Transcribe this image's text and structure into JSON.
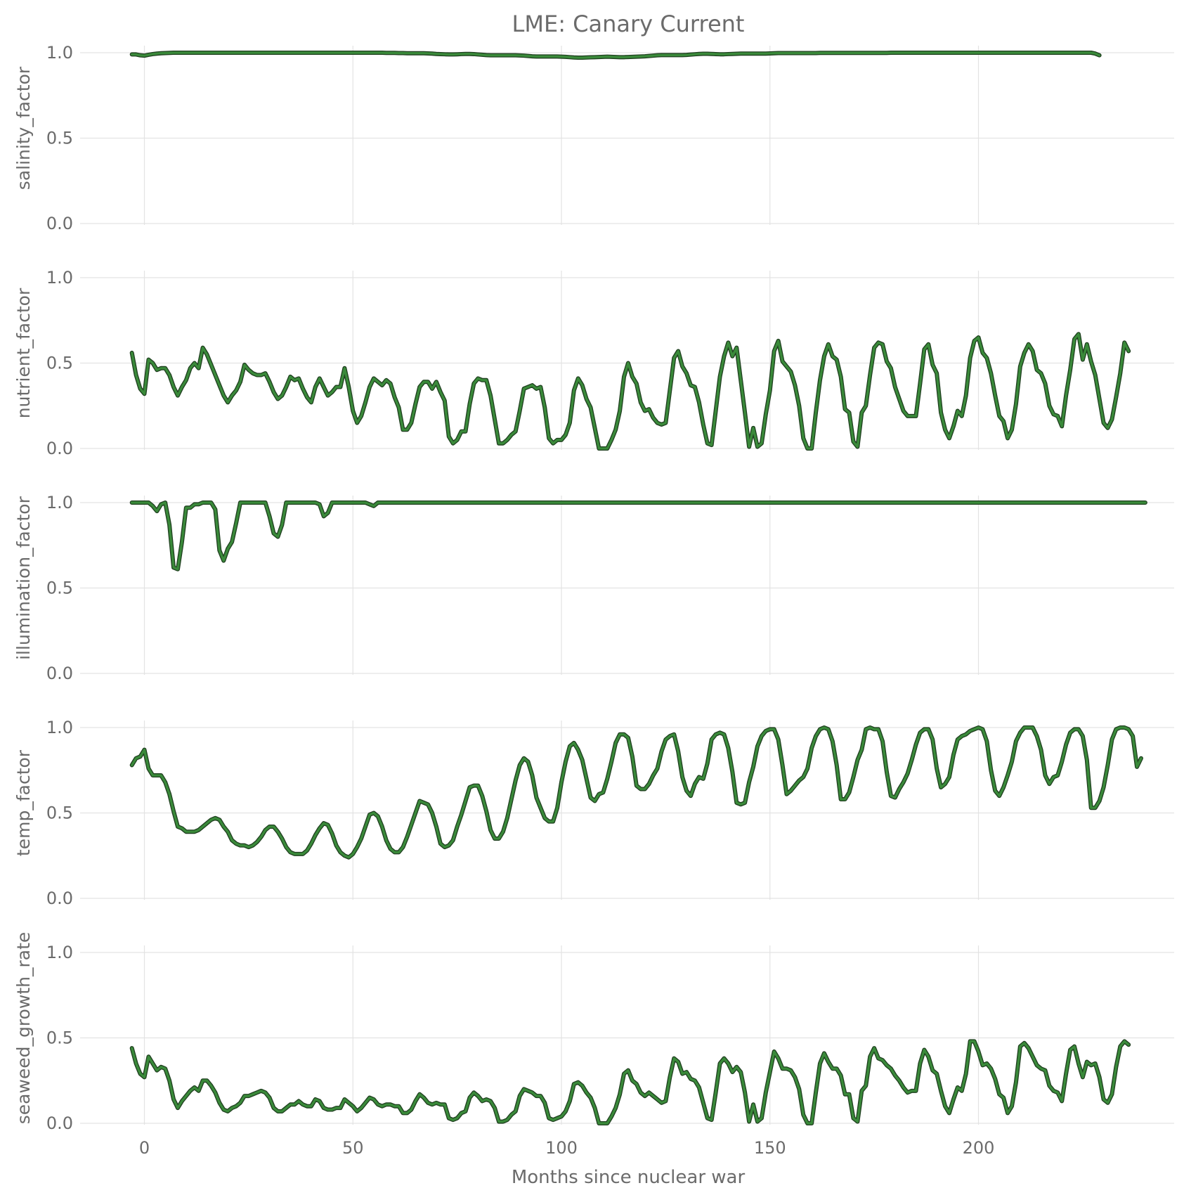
{
  "chart_data": {
    "type": "line",
    "title": "LME: Canary Current",
    "xlabel": "Months since nuclear war",
    "xlim": [
      -14,
      248
    ],
    "ylim": [
      0,
      1.05
    ],
    "x_ticks": [
      0,
      50,
      100,
      150,
      200
    ],
    "y_ticks": [
      0.0,
      0.5,
      1.0
    ],
    "x_tick_labels": [
      "0",
      "50",
      "100",
      "150",
      "200"
    ],
    "y_tick_labels": [
      "0.0",
      "0.5",
      "1.0"
    ],
    "x_start": -3,
    "x_step": 1,
    "line_color": "#3a8a3a",
    "line_edge_color": "#1f3f1f",
    "panels": [
      {
        "ylabel": "salinity_factor",
        "values": [
          0.99,
          0.99,
          0.985,
          0.983,
          0.988,
          0.992,
          0.995,
          0.997,
          0.998,
          0.999,
          1.0,
          1.0,
          1.0,
          1.0,
          1.0,
          1.0,
          1.0,
          1.0,
          1.0,
          1.0,
          1.0,
          1.0,
          1.0,
          1.0,
          1.0,
          1.0,
          1.0,
          1.0,
          1.0,
          1.0,
          1.0,
          1.0,
          1.0,
          1.0,
          1.0,
          1.0,
          1.0,
          1.0,
          1.0,
          1.0,
          1.0,
          1.0,
          1.0,
          1.0,
          1.0,
          1.0,
          1.0,
          1.0,
          1.0,
          1.0,
          1.0,
          1.0,
          1.0,
          1.0,
          1.0,
          1.0,
          1.0,
          1.0,
          1.0,
          1.0,
          1.0,
          0.999,
          0.999,
          0.999,
          0.998,
          0.998,
          0.997,
          0.997,
          0.997,
          0.997,
          0.997,
          0.996,
          0.995,
          0.993,
          0.992,
          0.991,
          0.99,
          0.99,
          0.991,
          0.992,
          0.993,
          0.993,
          0.992,
          0.99,
          0.988,
          0.986,
          0.985,
          0.985,
          0.985,
          0.985,
          0.985,
          0.985,
          0.985,
          0.984,
          0.983,
          0.981,
          0.979,
          0.978,
          0.978,
          0.978,
          0.978,
          0.978,
          0.978,
          0.977,
          0.976,
          0.974,
          0.972,
          0.971,
          0.971,
          0.972,
          0.973,
          0.974,
          0.975,
          0.976,
          0.977,
          0.976,
          0.975,
          0.974,
          0.974,
          0.975,
          0.976,
          0.977,
          0.978,
          0.979,
          0.981,
          0.983,
          0.985,
          0.986,
          0.986,
          0.986,
          0.986,
          0.986,
          0.986,
          0.987,
          0.989,
          0.991,
          0.993,
          0.994,
          0.994,
          0.993,
          0.992,
          0.991,
          0.991,
          0.992,
          0.993,
          0.994,
          0.995,
          0.995,
          0.995,
          0.995,
          0.995,
          0.995,
          0.995,
          0.996,
          0.997,
          0.998,
          0.998,
          0.998,
          0.998,
          0.998,
          0.998,
          0.998,
          0.998,
          0.998,
          0.998,
          0.999,
          0.999,
          0.999,
          0.999,
          0.999,
          0.999,
          0.999,
          0.999,
          0.999,
          0.999,
          0.999,
          0.999,
          0.999,
          0.999,
          0.999,
          0.999,
          0.999,
          1.0,
          1.0,
          1.0,
          1.0,
          1.0,
          1.0,
          1.0,
          1.0,
          1.0,
          1.0,
          1.0,
          1.0,
          1.0,
          1.0,
          1.0,
          1.0,
          1.0,
          1.0,
          1.0,
          1.0,
          1.0,
          1.0,
          1.0,
          1.0,
          1.0,
          1.0,
          1.0,
          1.0,
          1.0,
          1.0,
          1.0,
          1.0,
          1.0,
          1.0,
          1.0,
          1.0,
          1.0,
          1.0,
          1.0,
          1.0,
          1.0,
          1.0,
          1.0,
          1.0,
          1.0,
          1.0,
          1.0,
          1.0,
          1.0,
          0.995,
          0.985
        ]
      },
      {
        "ylabel": "nutrient_factor",
        "values": [
          0.56,
          0.43,
          0.35,
          0.32,
          0.52,
          0.5,
          0.46,
          0.47,
          0.47,
          0.43,
          0.36,
          0.31,
          0.36,
          0.4,
          0.47,
          0.5,
          0.47,
          0.59,
          0.55,
          0.49,
          0.43,
          0.37,
          0.31,
          0.27,
          0.31,
          0.34,
          0.39,
          0.49,
          0.46,
          0.44,
          0.43,
          0.43,
          0.44,
          0.39,
          0.33,
          0.29,
          0.31,
          0.36,
          0.42,
          0.4,
          0.41,
          0.35,
          0.3,
          0.27,
          0.36,
          0.41,
          0.36,
          0.31,
          0.33,
          0.36,
          0.36,
          0.47,
          0.36,
          0.22,
          0.15,
          0.19,
          0.27,
          0.36,
          0.41,
          0.39,
          0.37,
          0.4,
          0.38,
          0.3,
          0.24,
          0.11,
          0.11,
          0.15,
          0.26,
          0.36,
          0.39,
          0.39,
          0.35,
          0.39,
          0.33,
          0.28,
          0.07,
          0.03,
          0.05,
          0.1,
          0.1,
          0.26,
          0.38,
          0.41,
          0.4,
          0.4,
          0.31,
          0.17,
          0.03,
          0.03,
          0.05,
          0.08,
          0.1,
          0.22,
          0.35,
          0.36,
          0.37,
          0.35,
          0.36,
          0.24,
          0.06,
          0.03,
          0.05,
          0.05,
          0.08,
          0.15,
          0.34,
          0.41,
          0.37,
          0.29,
          0.24,
          0.12,
          0.0,
          0.0,
          0.0,
          0.05,
          0.11,
          0.22,
          0.42,
          0.5,
          0.42,
          0.38,
          0.27,
          0.22,
          0.23,
          0.18,
          0.15,
          0.14,
          0.15,
          0.34,
          0.53,
          0.57,
          0.48,
          0.44,
          0.37,
          0.36,
          0.27,
          0.14,
          0.03,
          0.02,
          0.22,
          0.42,
          0.54,
          0.62,
          0.54,
          0.59,
          0.4,
          0.21,
          0.01,
          0.12,
          0.01,
          0.03,
          0.2,
          0.34,
          0.57,
          0.63,
          0.51,
          0.48,
          0.45,
          0.37,
          0.25,
          0.06,
          0.0,
          0.0,
          0.21,
          0.4,
          0.54,
          0.61,
          0.54,
          0.52,
          0.42,
          0.23,
          0.21,
          0.04,
          0.01,
          0.21,
          0.25,
          0.43,
          0.59,
          0.62,
          0.61,
          0.51,
          0.47,
          0.36,
          0.29,
          0.22,
          0.19,
          0.19,
          0.19,
          0.38,
          0.58,
          0.61,
          0.49,
          0.44,
          0.21,
          0.11,
          0.06,
          0.13,
          0.22,
          0.19,
          0.31,
          0.53,
          0.63,
          0.65,
          0.56,
          0.53,
          0.44,
          0.31,
          0.19,
          0.16,
          0.06,
          0.11,
          0.26,
          0.48,
          0.56,
          0.61,
          0.57,
          0.46,
          0.44,
          0.38,
          0.25,
          0.2,
          0.19,
          0.13,
          0.31,
          0.46,
          0.64,
          0.67,
          0.52,
          0.61,
          0.51,
          0.43,
          0.29,
          0.15,
          0.12,
          0.17,
          0.3,
          0.44,
          0.62,
          0.57
        ]
      },
      {
        "ylabel": "illumination_factor",
        "values": [
          1.0,
          1.0,
          1.0,
          1.0,
          1.0,
          0.98,
          0.95,
          0.99,
          1.0,
          0.87,
          0.62,
          0.61,
          0.77,
          0.97,
          0.97,
          0.99,
          0.99,
          1.0,
          1.0,
          1.0,
          0.96,
          0.72,
          0.66,
          0.73,
          0.77,
          0.88,
          1.0,
          1.0,
          1.0,
          1.0,
          1.0,
          1.0,
          1.0,
          0.92,
          0.82,
          0.8,
          0.87,
          1.0,
          1.0,
          1.0,
          1.0,
          1.0,
          1.0,
          1.0,
          1.0,
          0.99,
          0.92,
          0.94,
          1.0,
          1.0,
          1.0,
          1.0,
          1.0,
          1.0,
          1.0,
          1.0,
          1.0,
          0.99,
          0.98,
          1.0,
          1.0,
          1.0,
          1.0,
          1.0,
          1.0,
          1.0,
          1.0,
          1.0,
          1.0,
          1.0,
          1.0,
          1.0,
          1.0,
          1.0,
          1.0,
          1.0,
          1.0,
          1.0,
          1.0,
          1.0,
          1.0,
          1.0,
          1.0,
          1.0,
          1.0,
          1.0,
          1.0,
          1.0,
          1.0,
          1.0,
          1.0,
          1.0,
          1.0,
          1.0,
          1.0,
          1.0,
          1.0,
          1.0,
          1.0,
          1.0,
          1.0,
          1.0,
          1.0,
          1.0,
          1.0,
          1.0,
          1.0,
          1.0,
          1.0,
          1.0,
          1.0,
          1.0,
          1.0,
          1.0,
          1.0,
          1.0,
          1.0,
          1.0,
          1.0,
          1.0,
          1.0,
          1.0,
          1.0,
          1.0,
          1.0,
          1.0,
          1.0,
          1.0,
          1.0,
          1.0,
          1.0,
          1.0,
          1.0,
          1.0,
          1.0,
          1.0,
          1.0,
          1.0,
          1.0,
          1.0,
          1.0,
          1.0,
          1.0,
          1.0,
          1.0,
          1.0,
          1.0,
          1.0,
          1.0,
          1.0,
          1.0,
          1.0,
          1.0,
          1.0,
          1.0,
          1.0,
          1.0,
          1.0,
          1.0,
          1.0,
          1.0,
          1.0,
          1.0,
          1.0,
          1.0,
          1.0,
          1.0,
          1.0,
          1.0,
          1.0,
          1.0,
          1.0,
          1.0,
          1.0,
          1.0,
          1.0,
          1.0,
          1.0,
          1.0,
          1.0,
          1.0,
          1.0,
          1.0,
          1.0,
          1.0,
          1.0,
          1.0,
          1.0,
          1.0,
          1.0,
          1.0,
          1.0,
          1.0,
          1.0,
          1.0,
          1.0,
          1.0,
          1.0,
          1.0,
          1.0,
          1.0,
          1.0,
          1.0,
          1.0,
          1.0,
          1.0,
          1.0,
          1.0,
          1.0,
          1.0,
          1.0,
          1.0,
          1.0,
          1.0,
          1.0,
          1.0,
          1.0,
          1.0,
          1.0,
          1.0,
          1.0,
          1.0,
          1.0,
          1.0,
          1.0,
          1.0,
          1.0,
          1.0,
          1.0,
          1.0,
          1.0,
          1.0,
          1.0,
          1.0,
          1.0,
          1.0,
          1.0,
          1.0,
          1.0,
          1.0,
          1.0,
          1.0,
          1.0,
          1.0
        ]
      },
      {
        "ylabel": "temp_factor",
        "values": [
          0.78,
          0.82,
          0.83,
          0.87,
          0.76,
          0.72,
          0.72,
          0.72,
          0.68,
          0.61,
          0.51,
          0.42,
          0.41,
          0.39,
          0.39,
          0.39,
          0.4,
          0.42,
          0.44,
          0.46,
          0.47,
          0.46,
          0.42,
          0.39,
          0.34,
          0.32,
          0.31,
          0.31,
          0.3,
          0.31,
          0.33,
          0.36,
          0.4,
          0.42,
          0.42,
          0.39,
          0.35,
          0.3,
          0.27,
          0.26,
          0.26,
          0.26,
          0.28,
          0.32,
          0.37,
          0.41,
          0.44,
          0.43,
          0.38,
          0.31,
          0.27,
          0.25,
          0.24,
          0.26,
          0.3,
          0.35,
          0.42,
          0.49,
          0.5,
          0.48,
          0.42,
          0.34,
          0.29,
          0.27,
          0.27,
          0.3,
          0.36,
          0.43,
          0.5,
          0.57,
          0.56,
          0.55,
          0.5,
          0.42,
          0.32,
          0.3,
          0.31,
          0.34,
          0.42,
          0.49,
          0.57,
          0.65,
          0.66,
          0.66,
          0.6,
          0.51,
          0.4,
          0.35,
          0.35,
          0.39,
          0.47,
          0.58,
          0.69,
          0.78,
          0.82,
          0.8,
          0.72,
          0.59,
          0.53,
          0.47,
          0.45,
          0.45,
          0.53,
          0.68,
          0.8,
          0.89,
          0.91,
          0.87,
          0.81,
          0.7,
          0.59,
          0.57,
          0.61,
          0.62,
          0.7,
          0.8,
          0.91,
          0.96,
          0.96,
          0.94,
          0.83,
          0.66,
          0.64,
          0.64,
          0.67,
          0.72,
          0.76,
          0.86,
          0.93,
          0.95,
          0.96,
          0.86,
          0.71,
          0.63,
          0.6,
          0.67,
          0.71,
          0.7,
          0.79,
          0.93,
          0.96,
          0.97,
          0.96,
          0.88,
          0.74,
          0.56,
          0.55,
          0.56,
          0.68,
          0.77,
          0.89,
          0.95,
          0.98,
          0.99,
          0.99,
          0.93,
          0.78,
          0.61,
          0.63,
          0.66,
          0.69,
          0.71,
          0.76,
          0.88,
          0.95,
          0.99,
          1.0,
          0.99,
          0.92,
          0.78,
          0.58,
          0.58,
          0.62,
          0.71,
          0.81,
          0.87,
          0.99,
          1.0,
          0.99,
          0.99,
          0.92,
          0.74,
          0.6,
          0.59,
          0.64,
          0.68,
          0.73,
          0.81,
          0.9,
          0.97,
          0.99,
          0.99,
          0.93,
          0.76,
          0.65,
          0.67,
          0.71,
          0.84,
          0.93,
          0.95,
          0.96,
          0.98,
          0.99,
          1.0,
          0.99,
          0.92,
          0.75,
          0.63,
          0.6,
          0.65,
          0.72,
          0.8,
          0.92,
          0.97,
          1.0,
          1.0,
          1.0,
          0.95,
          0.87,
          0.72,
          0.67,
          0.71,
          0.72,
          0.8,
          0.9,
          0.97,
          0.99,
          0.99,
          0.95,
          0.81,
          0.53,
          0.53,
          0.57,
          0.65,
          0.78,
          0.93,
          0.99,
          1.0,
          1.0,
          0.99,
          0.95,
          0.77,
          0.82
        ]
      },
      {
        "ylabel": "seaweed_growth_rate",
        "values": [
          0.44,
          0.35,
          0.29,
          0.27,
          0.39,
          0.35,
          0.31,
          0.33,
          0.32,
          0.25,
          0.14,
          0.09,
          0.13,
          0.16,
          0.19,
          0.21,
          0.19,
          0.25,
          0.25,
          0.22,
          0.18,
          0.12,
          0.08,
          0.07,
          0.09,
          0.1,
          0.12,
          0.16,
          0.16,
          0.17,
          0.18,
          0.19,
          0.18,
          0.15,
          0.09,
          0.07,
          0.07,
          0.09,
          0.11,
          0.11,
          0.13,
          0.11,
          0.1,
          0.1,
          0.14,
          0.13,
          0.09,
          0.08,
          0.08,
          0.09,
          0.09,
          0.14,
          0.12,
          0.1,
          0.07,
          0.09,
          0.12,
          0.15,
          0.14,
          0.11,
          0.1,
          0.11,
          0.11,
          0.1,
          0.1,
          0.06,
          0.06,
          0.08,
          0.13,
          0.17,
          0.15,
          0.12,
          0.11,
          0.12,
          0.11,
          0.11,
          0.03,
          0.02,
          0.03,
          0.06,
          0.07,
          0.15,
          0.18,
          0.16,
          0.13,
          0.14,
          0.13,
          0.09,
          0.01,
          0.01,
          0.02,
          0.05,
          0.07,
          0.16,
          0.2,
          0.19,
          0.18,
          0.16,
          0.16,
          0.12,
          0.03,
          0.02,
          0.03,
          0.04,
          0.07,
          0.13,
          0.23,
          0.24,
          0.22,
          0.18,
          0.15,
          0.09,
          0.0,
          0.0,
          0.0,
          0.04,
          0.09,
          0.17,
          0.29,
          0.31,
          0.25,
          0.23,
          0.18,
          0.16,
          0.18,
          0.16,
          0.14,
          0.12,
          0.13,
          0.27,
          0.38,
          0.36,
          0.29,
          0.3,
          0.26,
          0.25,
          0.21,
          0.12,
          0.03,
          0.02,
          0.18,
          0.35,
          0.38,
          0.35,
          0.3,
          0.33,
          0.3,
          0.18,
          0.01,
          0.11,
          0.01,
          0.03,
          0.18,
          0.3,
          0.42,
          0.38,
          0.32,
          0.32,
          0.31,
          0.27,
          0.2,
          0.05,
          0.0,
          0.0,
          0.18,
          0.35,
          0.41,
          0.36,
          0.32,
          0.32,
          0.28,
          0.17,
          0.17,
          0.03,
          0.01,
          0.19,
          0.22,
          0.39,
          0.44,
          0.38,
          0.37,
          0.34,
          0.32,
          0.28,
          0.25,
          0.21,
          0.18,
          0.19,
          0.19,
          0.35,
          0.43,
          0.39,
          0.31,
          0.29,
          0.19,
          0.1,
          0.06,
          0.14,
          0.21,
          0.19,
          0.29,
          0.48,
          0.48,
          0.42,
          0.34,
          0.35,
          0.32,
          0.26,
          0.17,
          0.15,
          0.06,
          0.1,
          0.24,
          0.45,
          0.47,
          0.44,
          0.39,
          0.34,
          0.32,
          0.31,
          0.22,
          0.19,
          0.18,
          0.13,
          0.29,
          0.43,
          0.45,
          0.35,
          0.27,
          0.36,
          0.34,
          0.35,
          0.27,
          0.14,
          0.12,
          0.17,
          0.33,
          0.45,
          0.48,
          0.46
        ]
      }
    ]
  }
}
